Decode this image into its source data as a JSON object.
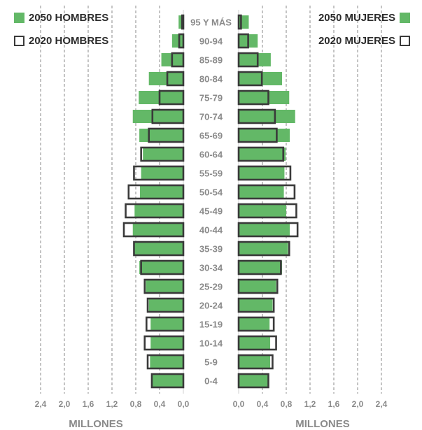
{
  "chart_data": {
    "type": "bar",
    "subtype": "population-pyramid",
    "categories": [
      "95 Y MÁS",
      "90-94",
      "85-89",
      "80-84",
      "75-79",
      "70-74",
      "65-69",
      "60-64",
      "55-59",
      "50-54",
      "45-49",
      "40-44",
      "35-39",
      "30-34",
      "25-29",
      "20-24",
      "15-19",
      "10-14",
      "5-9",
      "0-4"
    ],
    "series": [
      {
        "name": "2050 HOMBRES",
        "side": "left",
        "style": "filled",
        "color": "#63b867",
        "values": [
          0.08,
          0.19,
          0.37,
          0.58,
          0.75,
          0.85,
          0.74,
          0.68,
          0.71,
          0.73,
          0.82,
          0.85,
          0.82,
          0.74,
          0.63,
          0.58,
          0.55,
          0.55,
          0.56,
          0.53
        ]
      },
      {
        "name": "2020 HOMBRES",
        "side": "left",
        "style": "outline",
        "color": "#3a3a3a",
        "values": [
          0.02,
          0.07,
          0.19,
          0.27,
          0.4,
          0.52,
          0.58,
          0.71,
          0.83,
          0.92,
          0.97,
          1.0,
          0.83,
          0.71,
          0.65,
          0.6,
          0.62,
          0.65,
          0.6,
          0.53
        ]
      },
      {
        "name": "2050 MUJERES",
        "side": "right",
        "style": "filled",
        "color": "#63b867",
        "values": [
          0.17,
          0.32,
          0.54,
          0.73,
          0.85,
          0.95,
          0.86,
          0.79,
          0.77,
          0.76,
          0.8,
          0.86,
          0.83,
          0.73,
          0.63,
          0.57,
          0.52,
          0.53,
          0.53,
          0.5
        ]
      },
      {
        "name": "2020 MUJERES",
        "side": "right",
        "style": "outline",
        "color": "#3a3a3a",
        "values": [
          0.04,
          0.16,
          0.32,
          0.39,
          0.5,
          0.61,
          0.64,
          0.75,
          0.87,
          0.94,
          0.97,
          0.99,
          0.85,
          0.71,
          0.65,
          0.59,
          0.59,
          0.63,
          0.57,
          0.5
        ]
      }
    ],
    "left_axis": {
      "ticks": [
        "2,4",
        "2,0",
        "1,6",
        "1,2",
        "0,8",
        "0,4",
        "0,0"
      ],
      "label": "MILLONES",
      "range": [
        2.4,
        0
      ]
    },
    "right_axis": {
      "ticks": [
        "0,0",
        "0,4",
        "0,8",
        "1,2",
        "1,6",
        "2,0",
        "2,4"
      ],
      "label": "MILLONES",
      "range": [
        0,
        2.4
      ]
    },
    "grid": "vertical-dashed",
    "legend": {
      "left": [
        "2050 HOMBRES",
        "2020 HOMBRES"
      ],
      "right": [
        "2050 MUJERES",
        "2020 MUJERES"
      ],
      "position": "top"
    }
  },
  "colors": {
    "green": "#63b867",
    "outline": "#3a3a3a",
    "label": "#8a8a8a",
    "grid": "#888888"
  },
  "legend_labels": {
    "men_2050": "2050 HOMBRES",
    "men_2020": "2020 HOMBRES",
    "women_2050": "2050 MUJERES",
    "women_2020": "2020 MUJERES"
  },
  "axis_titles": {
    "left": "MILLONES",
    "right": "MILLONES"
  }
}
